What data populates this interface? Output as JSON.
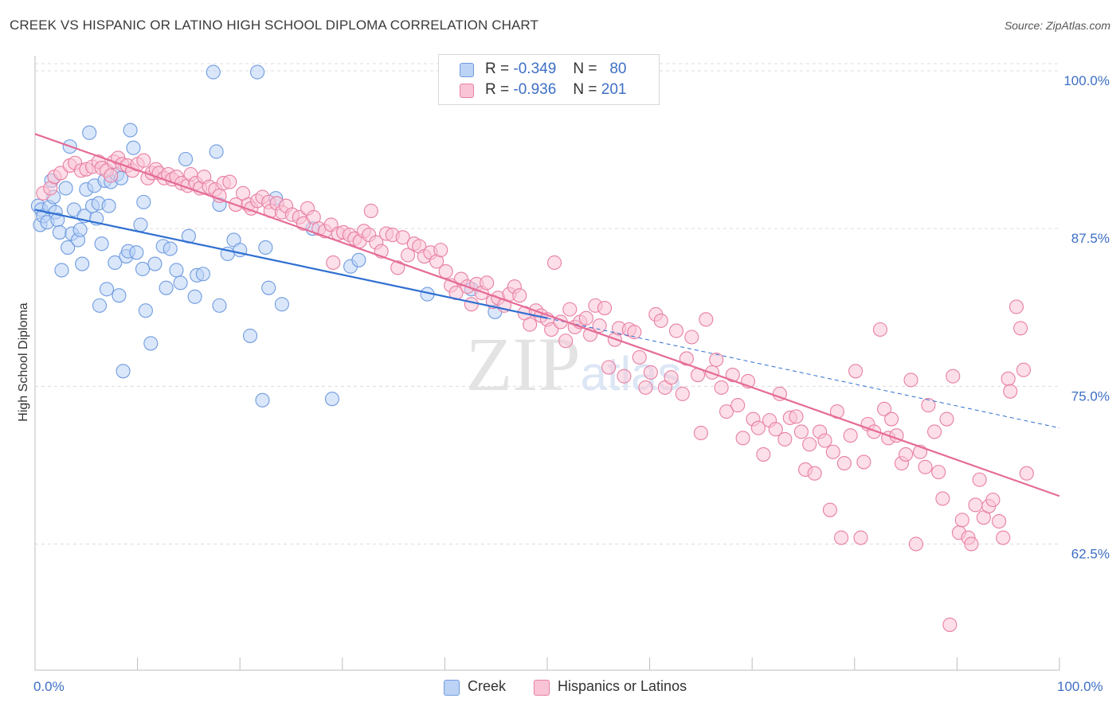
{
  "title": "CREEK VS HISPANIC OR LATINO HIGH SCHOOL DIPLOMA CORRELATION CHART",
  "source": "Source: ZipAtlas.com",
  "watermark": "ZIPatlas",
  "legend": {
    "rows": [
      {
        "r_label": "R =",
        "r_value": "-0.349",
        "n_label": "N =",
        "n_value": "80",
        "color": "#6f9be0",
        "fill": "#bcd3f5"
      },
      {
        "r_label": "R =",
        "r_value": "-0.936",
        "n_label": "N =",
        "n_value": "201",
        "color": "#e87fa3",
        "fill": "#f9c5d6"
      }
    ]
  },
  "bottom_legend": [
    {
      "label": "Creek",
      "fill": "#bcd3f5",
      "stroke": "#6f9be0"
    },
    {
      "label": "Hispanics or Latinos",
      "fill": "#f9c5d6",
      "stroke": "#e87fa3"
    }
  ],
  "chart_data": {
    "type": "scatter",
    "title": "CREEK VS HISPANIC OR LATINO HIGH SCHOOL DIPLOMA CORRELATION CHART",
    "xlabel": "",
    "ylabel": "High School Diploma",
    "xlim": [
      0,
      100
    ],
    "ylim": [
      52.5,
      101.2
    ],
    "x_tick_labels": [
      "0.0%",
      "100.0%"
    ],
    "y_ticks": [
      62.5,
      75.0,
      87.5,
      100.0
    ],
    "y_tick_labels": [
      "62.5%",
      "75.0%",
      "87.5%",
      "100.0%"
    ],
    "grid": true,
    "series": [
      {
        "name": "Creek",
        "color": "#6f9be0",
        "fill": "#bcd3f5",
        "trend": {
          "x": [
            0,
            50
          ],
          "y": [
            89.0,
            80.4
          ],
          "dashed_to_x": 100,
          "dashed_to_y": 71.7
        },
        "points": [
          [
            0.3,
            89.3
          ],
          [
            0.5,
            87.8
          ],
          [
            0.6,
            89.0
          ],
          [
            0.8,
            88.5
          ],
          [
            1.2,
            88.0
          ],
          [
            1.4,
            89.2
          ],
          [
            1.6,
            91.3
          ],
          [
            2.0,
            88.8
          ],
          [
            2.2,
            88.2
          ],
          [
            1.8,
            90.0
          ],
          [
            2.4,
            87.2
          ],
          [
            2.6,
            84.2
          ],
          [
            3.0,
            90.7
          ],
          [
            3.2,
            86.0
          ],
          [
            3.4,
            94.0
          ],
          [
            3.6,
            87.1
          ],
          [
            3.8,
            89.0
          ],
          [
            4.2,
            86.6
          ],
          [
            4.4,
            87.4
          ],
          [
            4.6,
            84.7
          ],
          [
            4.8,
            88.5
          ],
          [
            5.0,
            90.6
          ],
          [
            5.3,
            95.1
          ],
          [
            5.6,
            89.3
          ],
          [
            5.8,
            90.9
          ],
          [
            6.0,
            88.3
          ],
          [
            6.2,
            89.5
          ],
          [
            6.3,
            81.4
          ],
          [
            6.5,
            86.3
          ],
          [
            6.8,
            91.3
          ],
          [
            7.0,
            82.7
          ],
          [
            7.2,
            89.3
          ],
          [
            7.4,
            91.2
          ],
          [
            7.8,
            84.8
          ],
          [
            8.0,
            91.8
          ],
          [
            8.2,
            82.2
          ],
          [
            8.4,
            91.5
          ],
          [
            8.6,
            76.2
          ],
          [
            8.9,
            85.3
          ],
          [
            9.1,
            85.7
          ],
          [
            9.3,
            95.3
          ],
          [
            9.6,
            93.9
          ],
          [
            9.9,
            85.6
          ],
          [
            10.3,
            87.8
          ],
          [
            10.5,
            84.3
          ],
          [
            10.6,
            89.6
          ],
          [
            10.8,
            81.0
          ],
          [
            11.3,
            78.4
          ],
          [
            11.7,
            84.7
          ],
          [
            12.5,
            86.1
          ],
          [
            12.8,
            82.8
          ],
          [
            13.2,
            85.9
          ],
          [
            13.8,
            84.2
          ],
          [
            14.2,
            83.2
          ],
          [
            14.7,
            93.0
          ],
          [
            15.0,
            86.9
          ],
          [
            15.6,
            82.1
          ],
          [
            15.8,
            83.8
          ],
          [
            16.4,
            83.9
          ],
          [
            17.4,
            99.9
          ],
          [
            17.7,
            93.6
          ],
          [
            18.0,
            89.4
          ],
          [
            18.0,
            81.4
          ],
          [
            18.8,
            85.5
          ],
          [
            19.4,
            86.6
          ],
          [
            20.0,
            85.8
          ],
          [
            21.0,
            79.0
          ],
          [
            21.7,
            99.9
          ],
          [
            22.2,
            73.9
          ],
          [
            22.5,
            86.0
          ],
          [
            22.8,
            82.8
          ],
          [
            23.5,
            89.9
          ],
          [
            24.1,
            81.5
          ],
          [
            27.1,
            87.5
          ],
          [
            29.0,
            74.0
          ],
          [
            30.8,
            84.5
          ],
          [
            31.6,
            85.0
          ],
          [
            38.3,
            82.3
          ],
          [
            42.6,
            82.7
          ],
          [
            44.9,
            80.9
          ]
        ]
      },
      {
        "name": "Hispanics or Latinos",
        "color": "#e87fa3",
        "fill": "#f9c5d6",
        "trend": {
          "x": [
            0,
            100
          ],
          "y": [
            95.0,
            66.3
          ]
        },
        "points": [
          [
            0.8,
            90.3
          ],
          [
            1.5,
            90.7
          ],
          [
            1.9,
            91.6
          ],
          [
            2.5,
            91.9
          ],
          [
            3.4,
            92.5
          ],
          [
            3.9,
            92.7
          ],
          [
            4.5,
            92.1
          ],
          [
            5.0,
            92.2
          ],
          [
            5.6,
            92.4
          ],
          [
            6.2,
            92.8
          ],
          [
            6.5,
            92.3
          ],
          [
            7.0,
            92.1
          ],
          [
            7.4,
            91.7
          ],
          [
            7.7,
            92.8
          ],
          [
            8.1,
            93.1
          ],
          [
            8.5,
            92.6
          ],
          [
            9.0,
            92.5
          ],
          [
            9.5,
            92.1
          ],
          [
            10.0,
            92.6
          ],
          [
            10.6,
            92.9
          ],
          [
            11.0,
            91.5
          ],
          [
            11.4,
            91.9
          ],
          [
            11.8,
            92.2
          ],
          [
            12.1,
            91.9
          ],
          [
            12.6,
            91.5
          ],
          [
            13.0,
            91.8
          ],
          [
            13.4,
            91.4
          ],
          [
            13.8,
            91.6
          ],
          [
            14.3,
            91.1
          ],
          [
            14.9,
            90.9
          ],
          [
            15.2,
            91.8
          ],
          [
            15.7,
            91.1
          ],
          [
            16.1,
            90.7
          ],
          [
            16.5,
            91.6
          ],
          [
            17.0,
            90.8
          ],
          [
            17.6,
            90.6
          ],
          [
            18.0,
            90.1
          ],
          [
            18.4,
            91.1
          ],
          [
            19.0,
            91.2
          ],
          [
            19.6,
            89.4
          ],
          [
            20.3,
            90.3
          ],
          [
            20.8,
            89.4
          ],
          [
            21.1,
            89.1
          ],
          [
            21.7,
            89.7
          ],
          [
            22.2,
            90.0
          ],
          [
            22.8,
            89.6
          ],
          [
            23.0,
            88.9
          ],
          [
            23.6,
            89.5
          ],
          [
            24.1,
            88.8
          ],
          [
            24.5,
            89.3
          ],
          [
            25.1,
            88.6
          ],
          [
            25.8,
            88.4
          ],
          [
            26.2,
            87.9
          ],
          [
            26.6,
            89.1
          ],
          [
            27.2,
            88.4
          ],
          [
            27.7,
            87.5
          ],
          [
            28.3,
            87.3
          ],
          [
            28.9,
            87.8
          ],
          [
            29.1,
            84.8
          ],
          [
            29.6,
            87.1
          ],
          [
            30.1,
            87.2
          ],
          [
            30.7,
            87.0
          ],
          [
            31.2,
            86.7
          ],
          [
            31.7,
            86.5
          ],
          [
            32.1,
            87.3
          ],
          [
            32.6,
            87.0
          ],
          [
            32.8,
            88.9
          ],
          [
            33.3,
            86.4
          ],
          [
            33.8,
            85.7
          ],
          [
            34.3,
            87.1
          ],
          [
            34.9,
            87.0
          ],
          [
            35.4,
            84.4
          ],
          [
            35.9,
            86.8
          ],
          [
            36.4,
            85.4
          ],
          [
            37.0,
            86.3
          ],
          [
            37.5,
            86.1
          ],
          [
            38.0,
            85.3
          ],
          [
            38.6,
            85.6
          ],
          [
            39.2,
            84.9
          ],
          [
            39.6,
            85.8
          ],
          [
            40.1,
            84.1
          ],
          [
            40.6,
            83.0
          ],
          [
            41.1,
            82.4
          ],
          [
            41.6,
            83.5
          ],
          [
            42.2,
            82.9
          ],
          [
            42.6,
            81.5
          ],
          [
            43.1,
            83.1
          ],
          [
            43.6,
            82.4
          ],
          [
            44.1,
            83.2
          ],
          [
            44.7,
            81.7
          ],
          [
            45.2,
            82.0
          ],
          [
            45.8,
            81.4
          ],
          [
            46.3,
            82.3
          ],
          [
            46.8,
            82.9
          ],
          [
            47.3,
            82.2
          ],
          [
            47.8,
            80.8
          ],
          [
            48.3,
            79.9
          ],
          [
            48.9,
            81.0
          ],
          [
            49.4,
            80.6
          ],
          [
            50.0,
            80.3
          ],
          [
            50.4,
            79.5
          ],
          [
            50.7,
            84.8
          ],
          [
            51.3,
            80.1
          ],
          [
            51.8,
            78.6
          ],
          [
            52.2,
            81.1
          ],
          [
            52.7,
            79.7
          ],
          [
            53.2,
            80.1
          ],
          [
            53.8,
            80.4
          ],
          [
            54.2,
            79.1
          ],
          [
            54.7,
            81.4
          ],
          [
            55.1,
            79.8
          ],
          [
            55.6,
            81.2
          ],
          [
            56.0,
            76.5
          ],
          [
            56.6,
            78.7
          ],
          [
            57.0,
            79.6
          ],
          [
            57.5,
            75.8
          ],
          [
            58.0,
            79.5
          ],
          [
            58.5,
            79.3
          ],
          [
            59.0,
            77.3
          ],
          [
            59.6,
            74.9
          ],
          [
            60.1,
            76.1
          ],
          [
            60.6,
            80.7
          ],
          [
            61.1,
            80.2
          ],
          [
            61.5,
            74.9
          ],
          [
            62.1,
            75.7
          ],
          [
            62.6,
            79.4
          ],
          [
            63.2,
            74.4
          ],
          [
            63.6,
            77.2
          ],
          [
            64.1,
            78.9
          ],
          [
            64.7,
            75.9
          ],
          [
            65.0,
            71.3
          ],
          [
            65.5,
            80.3
          ],
          [
            66.1,
            76.1
          ],
          [
            66.5,
            77.1
          ],
          [
            67.0,
            74.9
          ],
          [
            67.5,
            73.0
          ],
          [
            68.1,
            75.9
          ],
          [
            68.6,
            73.5
          ],
          [
            69.1,
            70.9
          ],
          [
            69.6,
            75.4
          ],
          [
            70.1,
            72.4
          ],
          [
            70.6,
            71.7
          ],
          [
            71.1,
            69.6
          ],
          [
            71.7,
            72.3
          ],
          [
            72.3,
            71.6
          ],
          [
            72.7,
            74.4
          ],
          [
            73.2,
            70.8
          ],
          [
            73.7,
            72.5
          ],
          [
            74.3,
            72.6
          ],
          [
            74.8,
            71.4
          ],
          [
            75.2,
            68.4
          ],
          [
            75.6,
            70.4
          ],
          [
            76.1,
            68.1
          ],
          [
            76.6,
            71.4
          ],
          [
            77.1,
            70.7
          ],
          [
            77.6,
            65.2
          ],
          [
            77.9,
            69.8
          ],
          [
            78.3,
            73.0
          ],
          [
            78.7,
            63.0
          ],
          [
            79.0,
            68.9
          ],
          [
            79.6,
            71.1
          ],
          [
            80.1,
            76.2
          ],
          [
            80.6,
            63.0
          ],
          [
            80.9,
            69.0
          ],
          [
            81.3,
            72.0
          ],
          [
            81.9,
            71.4
          ],
          [
            82.5,
            79.5
          ],
          [
            82.9,
            73.2
          ],
          [
            83.3,
            70.9
          ],
          [
            83.6,
            72.4
          ],
          [
            84.1,
            71.1
          ],
          [
            84.6,
            68.9
          ],
          [
            85.0,
            69.6
          ],
          [
            85.5,
            75.5
          ],
          [
            86.0,
            62.5
          ],
          [
            86.4,
            69.8
          ],
          [
            86.9,
            68.6
          ],
          [
            87.2,
            73.5
          ],
          [
            87.8,
            71.4
          ],
          [
            88.2,
            68.2
          ],
          [
            88.6,
            66.1
          ],
          [
            89.0,
            72.4
          ],
          [
            89.3,
            56.1
          ],
          [
            89.6,
            75.8
          ],
          [
            90.2,
            63.4
          ],
          [
            90.5,
            64.4
          ],
          [
            91.1,
            63.0
          ],
          [
            91.4,
            62.5
          ],
          [
            91.8,
            65.6
          ],
          [
            92.2,
            67.6
          ],
          [
            92.6,
            64.6
          ],
          [
            93.1,
            65.5
          ],
          [
            93.5,
            66.0
          ],
          [
            94.1,
            64.3
          ],
          [
            94.5,
            63.0
          ],
          [
            95.0,
            75.6
          ],
          [
            95.2,
            74.6
          ],
          [
            95.8,
            81.3
          ],
          [
            96.2,
            79.6
          ],
          [
            96.8,
            68.1
          ],
          [
            96.5,
            76.3
          ]
        ]
      }
    ]
  }
}
